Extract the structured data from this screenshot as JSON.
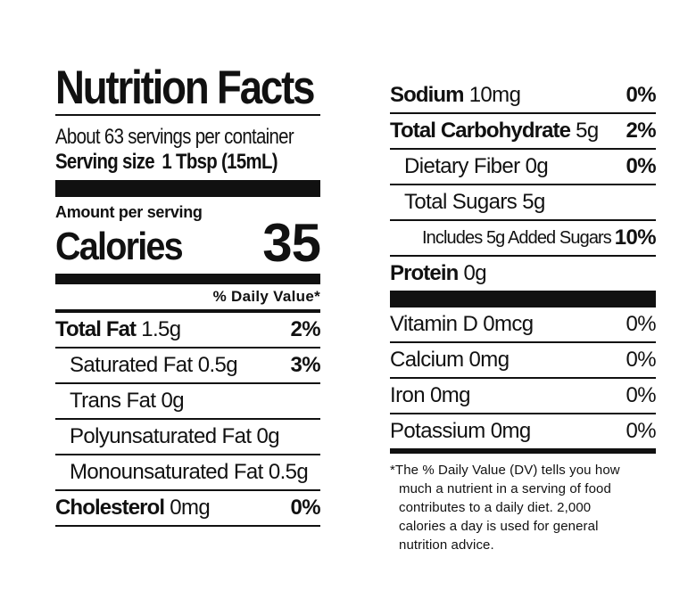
{
  "title": "Nutrition Facts",
  "servings_per_container": "About 63 servings per container",
  "serving_size": {
    "label": "Serving size",
    "value": "1 Tbsp (15mL)"
  },
  "amount_per_serving": "Amount per serving",
  "calories": {
    "label": "Calories",
    "value": "35"
  },
  "daily_value_header": "% Daily Value*",
  "left_nutrients": [
    {
      "name": "Total Fat",
      "amount": "1.5g",
      "dv": "2%"
    },
    {
      "name": "Saturated Fat",
      "amount": "0.5g",
      "dv": "3%"
    },
    {
      "name": "Trans Fat",
      "amount": "0g",
      "dv": ""
    },
    {
      "name": "Polyunsaturated Fat",
      "amount": "0g",
      "dv": ""
    },
    {
      "name": "Monounsaturated Fat",
      "amount": "0.5g",
      "dv": ""
    },
    {
      "name": "Cholesterol",
      "amount": "0mg",
      "dv": "0%"
    }
  ],
  "right_nutrients": [
    {
      "name": "Sodium",
      "amount": "10mg",
      "dv": "0%"
    },
    {
      "name": "Total Carbohydrate",
      "amount": "5g",
      "dv": "2%"
    },
    {
      "name": "Dietary Fiber",
      "amount": "0g",
      "dv": "0%"
    },
    {
      "name": "Total Sugars",
      "amount": "5g",
      "dv": ""
    },
    {
      "name": "Includes 5g Added Sugars",
      "amount": "",
      "dv": "10%"
    },
    {
      "name": "Protein",
      "amount": "0g",
      "dv": ""
    }
  ],
  "vitamins": [
    {
      "name": "Vitamin D 0mcg",
      "dv": "0%"
    },
    {
      "name": "Calcium 0mg",
      "dv": "0%"
    },
    {
      "name": "Iron 0mg",
      "dv": "0%"
    },
    {
      "name": "Potassium 0mg",
      "dv": "0%"
    }
  ],
  "footnote": {
    "line1": "*The % Daily Value (DV) tells you how",
    "line2": "much a nutrient in a serving of food",
    "line3": "contributes to a daily diet. 2,000",
    "line4": "calories a day is used for general",
    "line5": "nutrition advice."
  }
}
